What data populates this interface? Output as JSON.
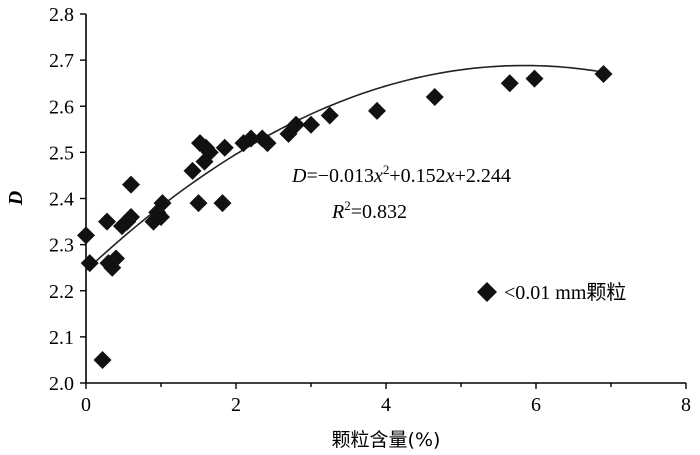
{
  "chart_data": {
    "type": "scatter",
    "xlabel": "颗粒含量(%)",
    "ylabel": "D",
    "xlim": [
      0,
      8
    ],
    "ylim": [
      2.0,
      2.8
    ],
    "x_ticks": [
      "0",
      "2",
      "4",
      "6",
      "8"
    ],
    "y_ticks": [
      "2.0",
      "2.1",
      "2.2",
      "2.3",
      "2.4",
      "2.5",
      "2.6",
      "2.7",
      "2.8"
    ],
    "grid": false,
    "legend_position": "right",
    "series": [
      {
        "name": "<0.01 mm颗粒",
        "marker": "diamond",
        "color": "#111111",
        "x": [
          0.0,
          0.05,
          0.22,
          0.28,
          0.3,
          0.35,
          0.4,
          0.48,
          0.55,
          0.6,
          0.6,
          0.9,
          0.95,
          1.0,
          1.02,
          1.42,
          1.5,
          1.52,
          1.58,
          1.6,
          1.65,
          1.82,
          1.85,
          2.1,
          2.2,
          2.35,
          2.42,
          2.7,
          2.8,
          3.0,
          3.25,
          3.88,
          4.65,
          5.65,
          5.98,
          6.9
        ],
        "y": [
          2.32,
          2.26,
          2.05,
          2.35,
          2.26,
          2.25,
          2.27,
          2.34,
          2.35,
          2.43,
          2.36,
          2.35,
          2.37,
          2.36,
          2.39,
          2.46,
          2.39,
          2.52,
          2.48,
          2.51,
          2.5,
          2.39,
          2.51,
          2.52,
          2.53,
          2.53,
          2.52,
          2.54,
          2.56,
          2.56,
          2.58,
          2.59,
          2.62,
          2.65,
          2.66,
          2.67
        ]
      }
    ],
    "fit": {
      "type": "quadratic",
      "a": -0.013,
      "b": 0.152,
      "c": 2.244,
      "x_range": [
        0.0,
        6.9
      ]
    },
    "annotations": {
      "equation": "D=−0.013x²+0.152x+2.244",
      "r_squared": "R²=0.832"
    },
    "legend_label": "<0.01 mm颗粒"
  }
}
